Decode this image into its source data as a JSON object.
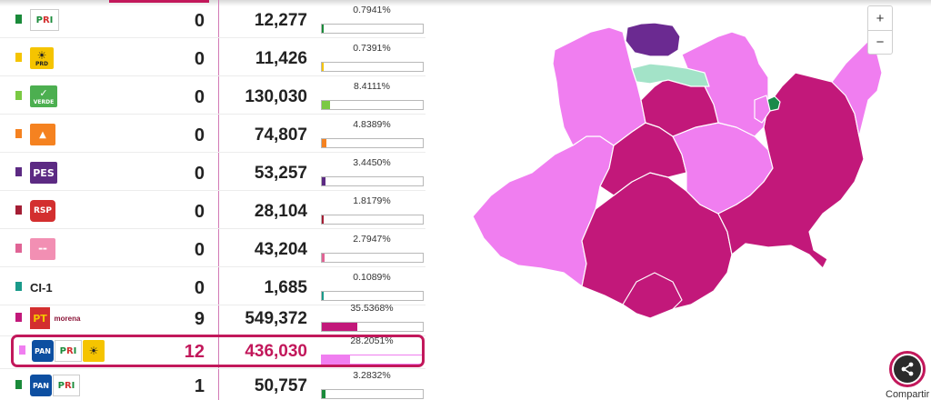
{
  "rows": [
    {
      "id": "pri",
      "swatch": "#1a8a3a",
      "seats": "0",
      "votes": "12,277",
      "pct": "0.7941%",
      "pct_value": 0.7941,
      "bar_color": "#1a8a3a"
    },
    {
      "id": "prd",
      "swatch": "#f5c400",
      "seats": "0",
      "votes": "11,426",
      "pct": "0.7391%",
      "pct_value": 0.7391,
      "bar_color": "#f5c400"
    },
    {
      "id": "verde",
      "swatch": "#7ac943",
      "seats": "0",
      "votes": "130,030",
      "pct": "8.4111%",
      "pct_value": 8.4111,
      "bar_color": "#7ac943"
    },
    {
      "id": "mc",
      "swatch": "#f58220",
      "seats": "0",
      "votes": "74,807",
      "pct": "4.8389%",
      "pct_value": 4.8389,
      "bar_color": "#f58220"
    },
    {
      "id": "pes",
      "swatch": "#5c2a83",
      "seats": "0",
      "votes": "53,257",
      "pct": "3.4450%",
      "pct_value": 3.445,
      "bar_color": "#5c2a83"
    },
    {
      "id": "rsp",
      "swatch": "#a41e34",
      "seats": "0",
      "votes": "28,104",
      "pct": "1.8179%",
      "pct_value": 1.8179,
      "bar_color": "#a41e34"
    },
    {
      "id": "fxm",
      "swatch": "#e06495",
      "seats": "0",
      "votes": "43,204",
      "pct": "2.7947%",
      "pct_value": 2.7947,
      "bar_color": "#e06495"
    },
    {
      "id": "ci1",
      "swatch": "#1a9a8a",
      "seats": "0",
      "votes": "1,685",
      "pct": "0.1089%",
      "pct_value": 0.1089,
      "bar_color": "#1a9a8a"
    },
    {
      "id": "pt-morena",
      "swatch": "#c2187a",
      "seats": "9",
      "votes": "549,372",
      "pct": "35.5368%",
      "pct_value": 35.5368,
      "bar_color": "#c2187a"
    },
    {
      "id": "pan-pri-prd",
      "swatch": "#f07ef0",
      "seats": "12",
      "votes": "436,030",
      "pct": "28.2051%",
      "pct_value": 28.2051,
      "bar_color": "#f07ef0"
    },
    {
      "id": "pan-pri",
      "swatch": "#1a8a3a",
      "seats": "1",
      "votes": "50,757",
      "pct": "3.2832%",
      "pct_value": 3.2832,
      "bar_color": "#1a8a3a"
    }
  ],
  "logos": {
    "pri": "PRI",
    "prd": "PRD",
    "verde": "VERDE",
    "pes": "PES",
    "rsp": "RSP",
    "ci1": "CI-1",
    "pt": "PT",
    "morena": "morena",
    "pan": "PAN"
  },
  "map": {
    "colors": {
      "coalition_pan_pri_prd": "#f07ef0",
      "coalition_pt_morena": "#c2187a",
      "verde": "#a3e3c8",
      "pes": "#6b2a91",
      "pri": "#1a8a4a"
    }
  },
  "zoom": {
    "in": "+",
    "out": "−"
  },
  "share": {
    "label": "Compartir"
  }
}
